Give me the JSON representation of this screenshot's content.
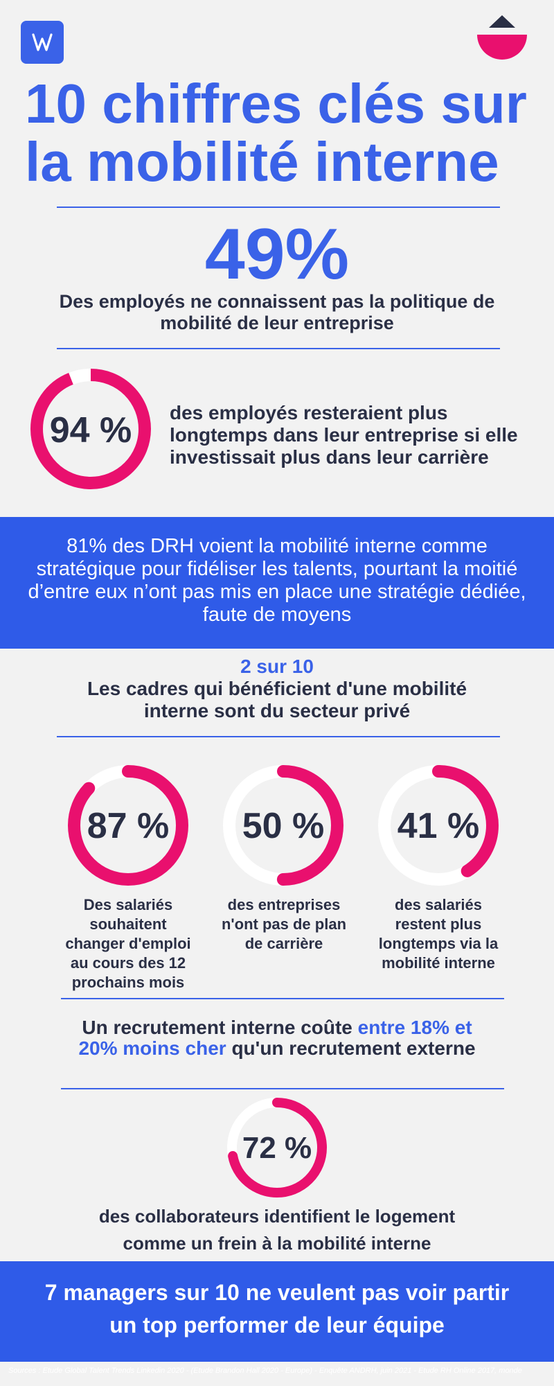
{
  "colors": {
    "blue": "#3a62e8",
    "band": "#2f5be8",
    "pink": "#e9106e",
    "dark": "#2a2f45",
    "bg": "#f2f2f2"
  },
  "header": {
    "logo_icon": "w-logo-icon",
    "corner_icon": "triangle-halfcircle-icon"
  },
  "title": {
    "line1": "10 chiffres clés sur",
    "line2": "la mobilité interne"
  },
  "stat49": {
    "value": "49%",
    "text": "Des employés ne connaissent pas la politique de mobilité de leur entreprise"
  },
  "stat94": {
    "value": "94 %",
    "fraction": 0.94,
    "text": "des employés resteraient plus longtemps dans leur entreprise si elle investissait plus dans leur carrière"
  },
  "band1": {
    "text": "81% des DRH voient la mobilité interne comme stratégique pour fidéliser les talents, pourtant la moitié d’entre eux n’ont pas mis en place une stratégie dédiée, faute de moyens"
  },
  "cadres": {
    "headline": "2 sur 10",
    "text": "Les cadres qui bénéficient d'une mobilité interne sont du secteur privé"
  },
  "rings": [
    {
      "value": "87 %",
      "fraction": 0.87,
      "text": "Des salariés souhaitent changer d'emploi au cours des 12 prochains mois"
    },
    {
      "value": "50 %",
      "fraction": 0.5,
      "text": "des entreprises n'ont pas de plan de carrière"
    },
    {
      "value": "41 %",
      "fraction": 0.41,
      "text": "des salariés restent plus longtemps via la mobilité interne"
    }
  ],
  "recrutement": {
    "before": "Un recrutement interne coûte ",
    "highlight": "entre 18% et 20% moins cher",
    "after": " qu'un recrutement externe"
  },
  "stat72": {
    "value": "72 %",
    "fraction": 0.72,
    "text": "des collaborateurs identifient le logement comme un frein à la mobilité interne"
  },
  "band2": {
    "text": "7 managers sur 10 ne veulent pas voir partir un top performer de leur équipe"
  },
  "sources": "Sources : Etude Global Talent Trends Linkedin 2020 - (Etude Brandon Hall 2020 - Europe) - Enquête ANDRH, juin 2021 - Etude RH Online 2017, monde"
}
